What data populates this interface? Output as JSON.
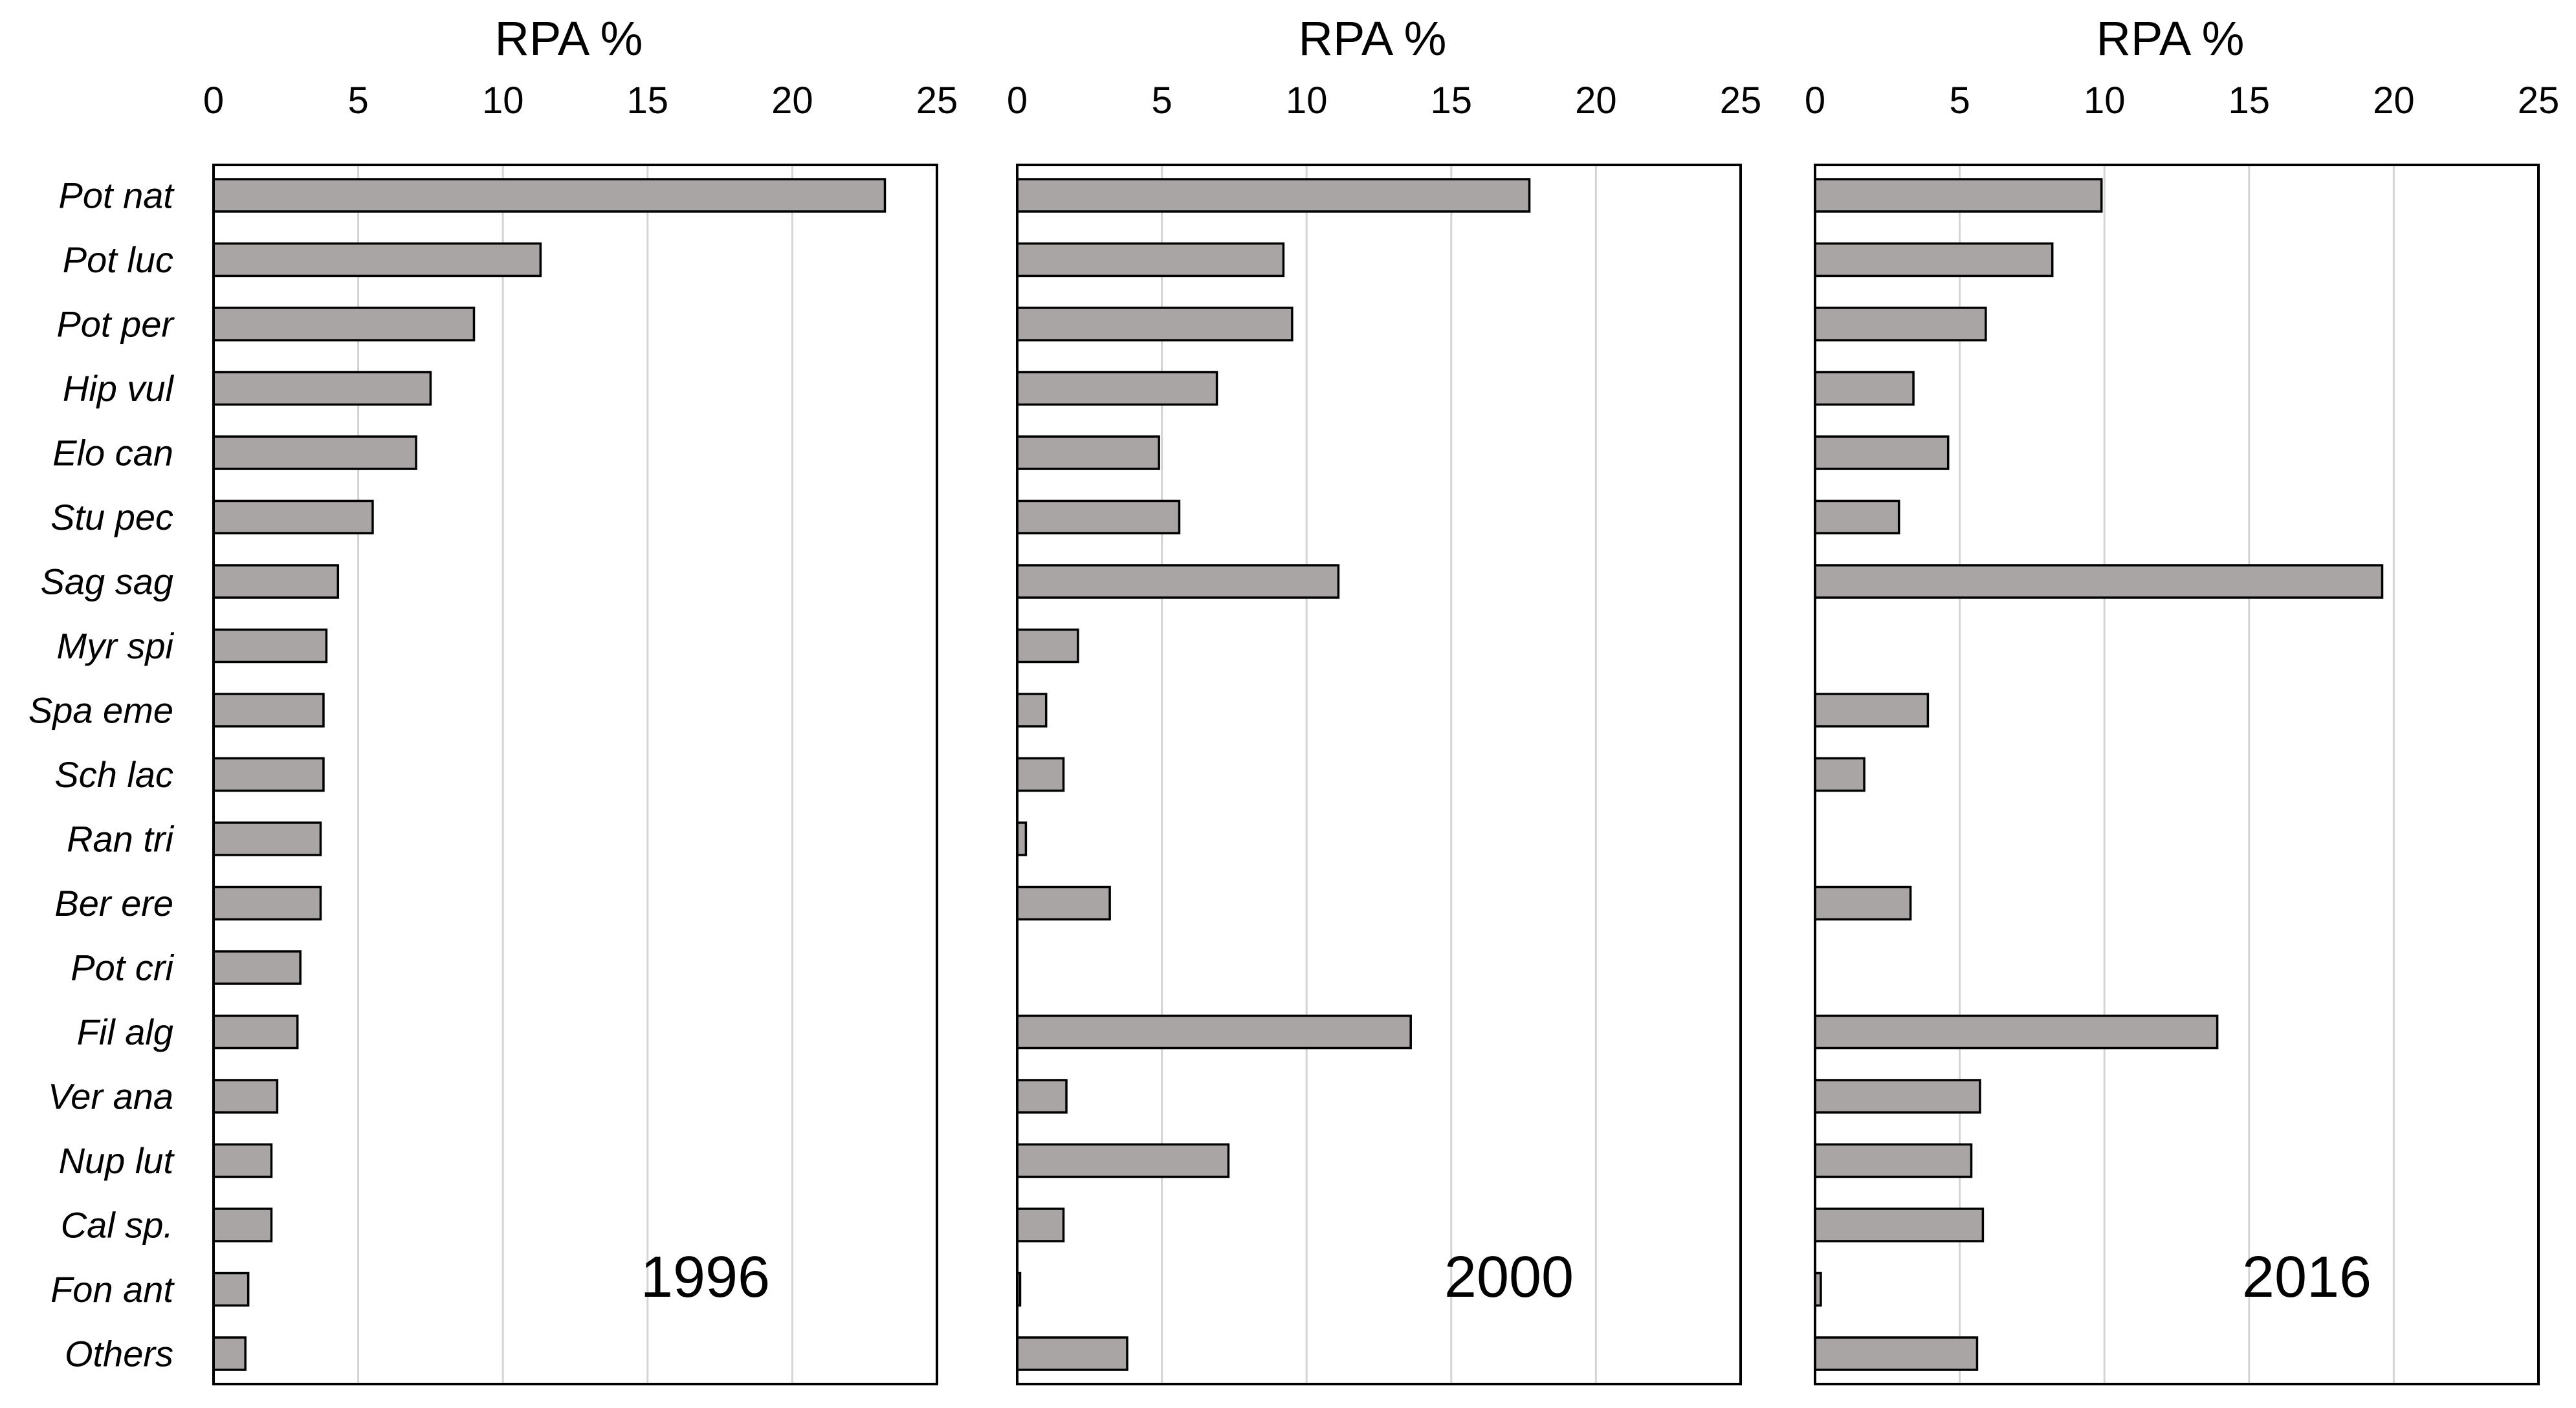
{
  "chart_data": {
    "type": "bar",
    "orientation": "horizontal",
    "categories": [
      "Pot nat",
      "Pot luc",
      "Pot per",
      "Hip vul",
      "Elo can",
      "Stu pec",
      "Sag sag",
      "Myr spi",
      "Spa eme",
      "Sch lac",
      "Ran tri",
      "Ber ere",
      "Pot cri",
      "Fil alg",
      "Ver ana",
      "Nup lut",
      "Cal sp.",
      "Fon ant",
      "Others"
    ],
    "xlabel": "RPA %",
    "xlim": [
      0,
      25
    ],
    "xticks": [
      0,
      5,
      10,
      15,
      20,
      25
    ],
    "grid": true,
    "panels": [
      {
        "year": "1996",
        "values": [
          23.2,
          11.3,
          9.0,
          7.5,
          7.0,
          5.5,
          4.3,
          3.9,
          3.8,
          3.8,
          3.7,
          3.7,
          3.0,
          2.9,
          2.2,
          2.0,
          2.0,
          1.2,
          1.1
        ]
      },
      {
        "year": "2000",
        "values": [
          17.7,
          9.2,
          9.5,
          6.9,
          4.9,
          5.6,
          11.1,
          2.1,
          1.0,
          1.6,
          0.3,
          3.2,
          0,
          13.6,
          1.7,
          7.3,
          1.6,
          0.1,
          3.8
        ]
      },
      {
        "year": "2016",
        "values": [
          9.9,
          8.2,
          5.9,
          3.4,
          4.6,
          2.9,
          19.6,
          0,
          3.9,
          1.7,
          0,
          3.3,
          0,
          13.9,
          5.7,
          5.4,
          5.8,
          0.2,
          5.6
        ]
      }
    ]
  }
}
